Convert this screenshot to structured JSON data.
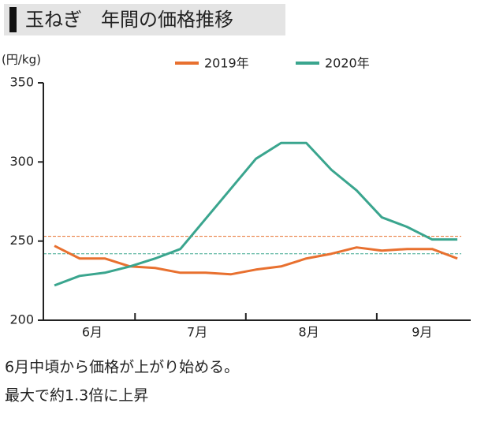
{
  "chart_data": {
    "type": "line",
    "title": "玉ねぎ　年間の価格推移",
    "y_unit": "(円/kg)",
    "x": [
      0,
      1,
      2,
      3,
      4,
      5,
      6,
      7,
      8,
      9,
      10,
      11,
      12,
      13,
      14,
      15,
      16
    ],
    "xlim": [
      -0.44,
      16.53
    ],
    "xticks": [
      {
        "value": 1.5,
        "label": "6月"
      },
      {
        "value": 5.67,
        "label": "7月"
      },
      {
        "value": 10.1,
        "label": "8月"
      },
      {
        "value": 14.6,
        "label": "9月"
      }
    ],
    "month_dividers": [
      3.2,
      7.6,
      12.8
    ],
    "ylim": [
      200,
      350
    ],
    "yticks": [
      200,
      250,
      300,
      350
    ],
    "series": [
      {
        "name": "2019年",
        "color": "#e8702f",
        "values": [
          247,
          239,
          239,
          234,
          233,
          230,
          230,
          229,
          232,
          234,
          239,
          242,
          246,
          244,
          245,
          245,
          239
        ]
      },
      {
        "name": "2020年",
        "color": "#3aa58e",
        "values": [
          222,
          228,
          230,
          234,
          239,
          245,
          264,
          283,
          302,
          312,
          312,
          295,
          282,
          265,
          259,
          251,
          251
        ]
      }
    ],
    "reference_lines": [
      {
        "value": 253,
        "color": "#e8702f"
      },
      {
        "value": 242,
        "color": "#3aa58e"
      }
    ],
    "notes": [
      "6月中頃から価格が上がり始める。",
      "最大で約1.3倍に上昇"
    ]
  }
}
